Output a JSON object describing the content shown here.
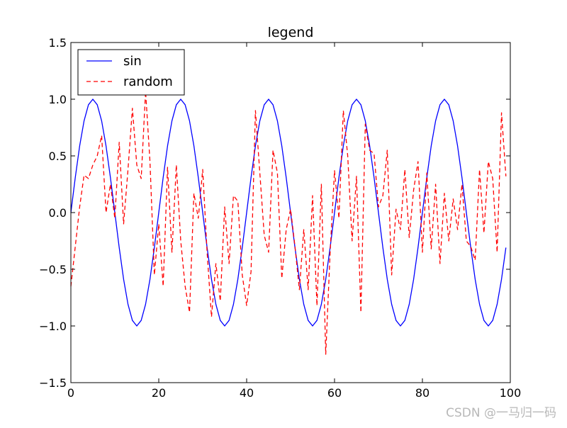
{
  "chart_data": {
    "type": "line",
    "title": "legend",
    "xlabel": "",
    "ylabel": "",
    "xlim": [
      0,
      100
    ],
    "ylim": [
      -1.5,
      1.5
    ],
    "xticks": [
      0,
      20,
      40,
      60,
      80,
      100
    ],
    "yticks": [
      1.5,
      1.0,
      0.5,
      0.0,
      -0.5,
      -1.0,
      -1.5
    ],
    "xtick_labels": [
      "0",
      "20",
      "40",
      "60",
      "80",
      "100"
    ],
    "ytick_labels": [
      "1.5",
      "1.0",
      "0.5",
      "0.0",
      "−0.5",
      "−1.0",
      "−1.5"
    ],
    "grid": false,
    "legend_position": "top-left",
    "series": [
      {
        "name": "sin",
        "color": "#0000ff",
        "style": "solid",
        "x": [
          0,
          1,
          2,
          3,
          4,
          5,
          6,
          7,
          8,
          9,
          10,
          11,
          12,
          13,
          14,
          15,
          16,
          17,
          18,
          19,
          20,
          21,
          22,
          23,
          24,
          25,
          26,
          27,
          28,
          29,
          30,
          31,
          32,
          33,
          34,
          35,
          36,
          37,
          38,
          39,
          40,
          41,
          42,
          43,
          44,
          45,
          46,
          47,
          48,
          49,
          50,
          51,
          52,
          53,
          54,
          55,
          56,
          57,
          58,
          59,
          60,
          61,
          62,
          63,
          64,
          65,
          66,
          67,
          68,
          69,
          70,
          71,
          72,
          73,
          74,
          75,
          76,
          77,
          78,
          79,
          80,
          81,
          82,
          83,
          84,
          85,
          86,
          87,
          88,
          89,
          90,
          91,
          92,
          93,
          94,
          95,
          96,
          97,
          98,
          99
        ],
        "values": [
          0.0,
          0.309,
          0.588,
          0.809,
          0.951,
          1.0,
          0.951,
          0.809,
          0.588,
          0.309,
          0.0,
          -0.309,
          -0.588,
          -0.809,
          -0.951,
          -1.0,
          -0.951,
          -0.809,
          -0.588,
          -0.309,
          0.0,
          0.309,
          0.588,
          0.809,
          0.951,
          1.0,
          0.951,
          0.809,
          0.588,
          0.309,
          0.0,
          -0.309,
          -0.588,
          -0.809,
          -0.951,
          -1.0,
          -0.951,
          -0.809,
          -0.588,
          -0.309,
          0.0,
          0.309,
          0.588,
          0.809,
          0.951,
          1.0,
          0.951,
          0.809,
          0.588,
          0.309,
          0.0,
          -0.309,
          -0.588,
          -0.809,
          -0.951,
          -1.0,
          -0.951,
          -0.809,
          -0.588,
          -0.309,
          0.0,
          0.309,
          0.588,
          0.809,
          0.951,
          1.0,
          0.951,
          0.809,
          0.588,
          0.309,
          0.0,
          -0.309,
          -0.588,
          -0.809,
          -0.951,
          -1.0,
          -0.951,
          -0.809,
          -0.588,
          -0.309,
          0.0,
          0.309,
          0.588,
          0.809,
          0.951,
          1.0,
          0.951,
          0.809,
          0.588,
          0.309,
          0.0,
          -0.309,
          -0.588,
          -0.809,
          -0.951,
          -1.0,
          -0.951,
          -0.809,
          -0.588,
          -0.309
        ]
      },
      {
        "name": "random",
        "color": "#ff0000",
        "style": "dashed",
        "x": [
          0,
          1,
          2,
          3,
          4,
          5,
          6,
          7,
          8,
          9,
          10,
          11,
          12,
          13,
          14,
          15,
          16,
          17,
          18,
          19,
          20,
          21,
          22,
          23,
          24,
          25,
          26,
          27,
          28,
          29,
          30,
          31,
          32,
          33,
          34,
          35,
          36,
          37,
          38,
          39,
          40,
          41,
          42,
          43,
          44,
          45,
          46,
          47,
          48,
          49,
          50,
          51,
          52,
          53,
          54,
          55,
          56,
          57,
          58,
          59,
          60,
          61,
          62,
          63,
          64,
          65,
          66,
          67,
          68,
          69,
          70,
          71,
          72,
          73,
          74,
          75,
          76,
          77,
          78,
          79,
          80,
          81,
          82,
          83,
          84,
          85,
          86,
          87,
          88,
          89,
          90,
          91,
          92,
          93,
          94,
          95,
          96,
          97,
          98,
          99
        ],
        "values": [
          -0.65,
          -0.3,
          0.05,
          0.33,
          0.3,
          0.42,
          0.5,
          0.68,
          0.0,
          0.25,
          -0.05,
          0.62,
          -0.1,
          0.38,
          0.92,
          0.42,
          0.3,
          1.07,
          0.45,
          -0.55,
          -0.1,
          -0.65,
          0.4,
          -0.35,
          0.42,
          -0.25,
          -0.65,
          -0.88,
          0.17,
          -0.05,
          0.38,
          -0.35,
          -0.92,
          -0.45,
          -0.78,
          0.05,
          -0.45,
          0.15,
          0.1,
          -0.55,
          -0.82,
          -0.52,
          0.9,
          0.35,
          -0.2,
          -0.35,
          0.55,
          0.35,
          -0.58,
          -0.15,
          0.03,
          -0.3,
          -0.68,
          -0.15,
          -0.68,
          0.15,
          -0.82,
          0.25,
          -1.25,
          -0.35,
          0.37,
          -0.05,
          0.9,
          0.5,
          -0.25,
          0.32,
          -0.88,
          0.78,
          0.55,
          0.52,
          0.05,
          0.15,
          0.55,
          -0.55,
          0.03,
          -0.15,
          0.38,
          -0.22,
          0.2,
          0.45,
          -0.35,
          0.35,
          -0.32,
          0.25,
          -0.45,
          0.17,
          -0.25,
          0.12,
          -0.15,
          0.25,
          -0.25,
          -0.3,
          -0.42,
          0.38,
          -0.18,
          0.45,
          0.3,
          -0.35,
          0.88,
          0.32
        ]
      }
    ]
  },
  "watermark": "CSDN @一马归一码"
}
